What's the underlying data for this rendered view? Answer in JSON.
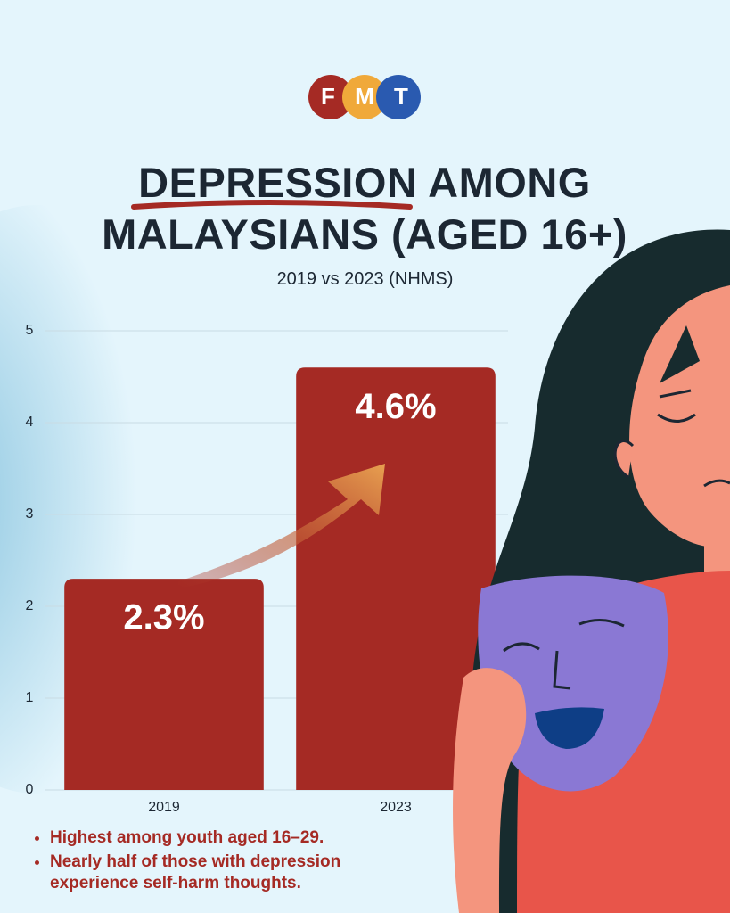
{
  "logo": [
    "F",
    "M",
    "T"
  ],
  "chart_data": {
    "type": "bar",
    "title": "DEPRESSION AMONG MALAYSIANS (AGED 16+)",
    "subtitle": "2019 vs 2023 (NHMS)",
    "categories": [
      "2019",
      "2023"
    ],
    "values": [
      2.3,
      4.6
    ],
    "value_labels": [
      "2.3%",
      "4.6%"
    ],
    "color": "#a52a24",
    "ylim": [
      0,
      5
    ],
    "yticks": [
      0,
      1,
      2,
      3,
      4,
      5
    ],
    "grid": true
  },
  "notes": [
    "Highest among youth aged 16–29.",
    "Nearly half of those with depression experience self-harm thoughts."
  ]
}
